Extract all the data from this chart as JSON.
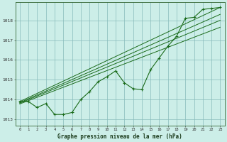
{
  "background_color": "#cceee8",
  "grid_color": "#88bbbb",
  "line_color": "#1a6b1a",
  "marker_color": "#1a6b1a",
  "title": "Graphe pression niveau de la mer (hPa)",
  "xlim": [
    -0.5,
    23.5
  ],
  "ylim": [
    1012.7,
    1018.9
  ],
  "yticks": [
    1013,
    1014,
    1015,
    1016,
    1017,
    1018
  ],
  "xticks": [
    0,
    1,
    2,
    3,
    4,
    5,
    6,
    7,
    8,
    9,
    10,
    11,
    12,
    13,
    14,
    15,
    16,
    17,
    18,
    19,
    20,
    21,
    22,
    23
  ],
  "series_main": {
    "x": [
      0,
      1,
      2,
      3,
      4,
      5,
      6,
      7,
      8,
      9,
      10,
      11,
      12,
      13,
      14,
      15,
      16,
      17,
      18,
      19,
      20,
      21,
      22,
      23
    ],
    "y": [
      1013.9,
      1013.9,
      1013.6,
      1013.8,
      1013.25,
      1013.25,
      1013.35,
      1014.0,
      1014.4,
      1014.9,
      1015.15,
      1015.45,
      1014.85,
      1014.55,
      1014.5,
      1015.5,
      1016.1,
      1016.7,
      1017.2,
      1018.1,
      1018.15,
      1018.55,
      1018.6,
      1018.65
    ]
  },
  "trend_lines": [
    {
      "x0": 0.0,
      "y0": 1013.9,
      "x1": 23,
      "y1": 1018.65
    },
    {
      "x0": 0.0,
      "y0": 1013.85,
      "x1": 23,
      "y1": 1018.3
    },
    {
      "x0": 0.0,
      "y0": 1013.82,
      "x1": 23,
      "y1": 1018.0
    },
    {
      "x0": 0.0,
      "y0": 1013.78,
      "x1": 23,
      "y1": 1017.65
    }
  ]
}
